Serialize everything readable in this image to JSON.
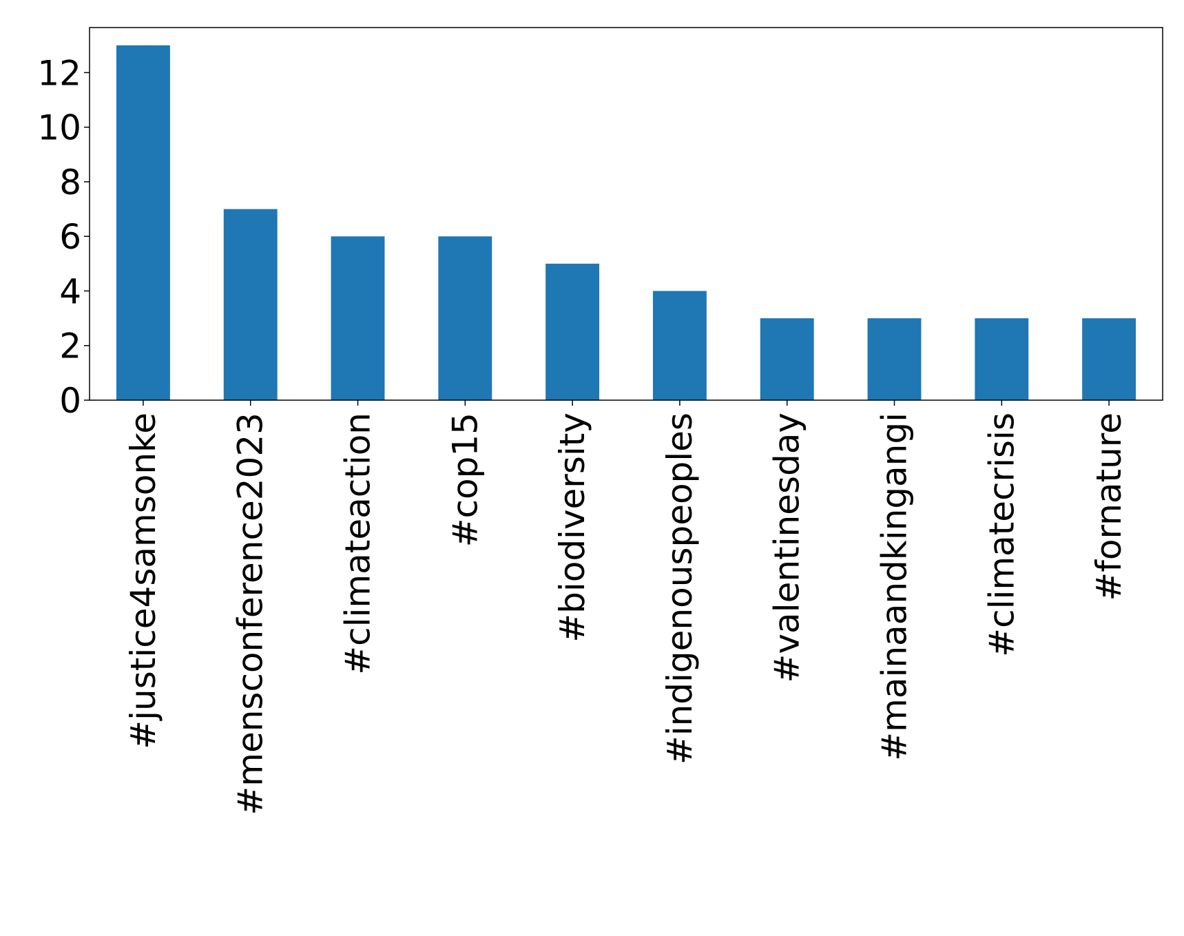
{
  "chart_data": {
    "type": "bar",
    "title": "",
    "xlabel": "",
    "ylabel": "",
    "categories": [
      "#justice4samsonke",
      "#mensconference2023",
      "#climateaction",
      "#cop15",
      "#biodiversity",
      "#indigenouspeoples",
      "#valentinesday",
      "#mainaandkingangi",
      "#climatecrisis",
      "#fornature"
    ],
    "values": [
      13,
      7,
      6,
      6,
      5,
      4,
      3,
      3,
      3,
      3
    ],
    "ylim": [
      0,
      13.65
    ],
    "yticks": [
      0,
      2,
      4,
      6,
      8,
      10,
      12
    ],
    "grid": false,
    "legend": "none",
    "bar_color": "#1f77b4"
  }
}
